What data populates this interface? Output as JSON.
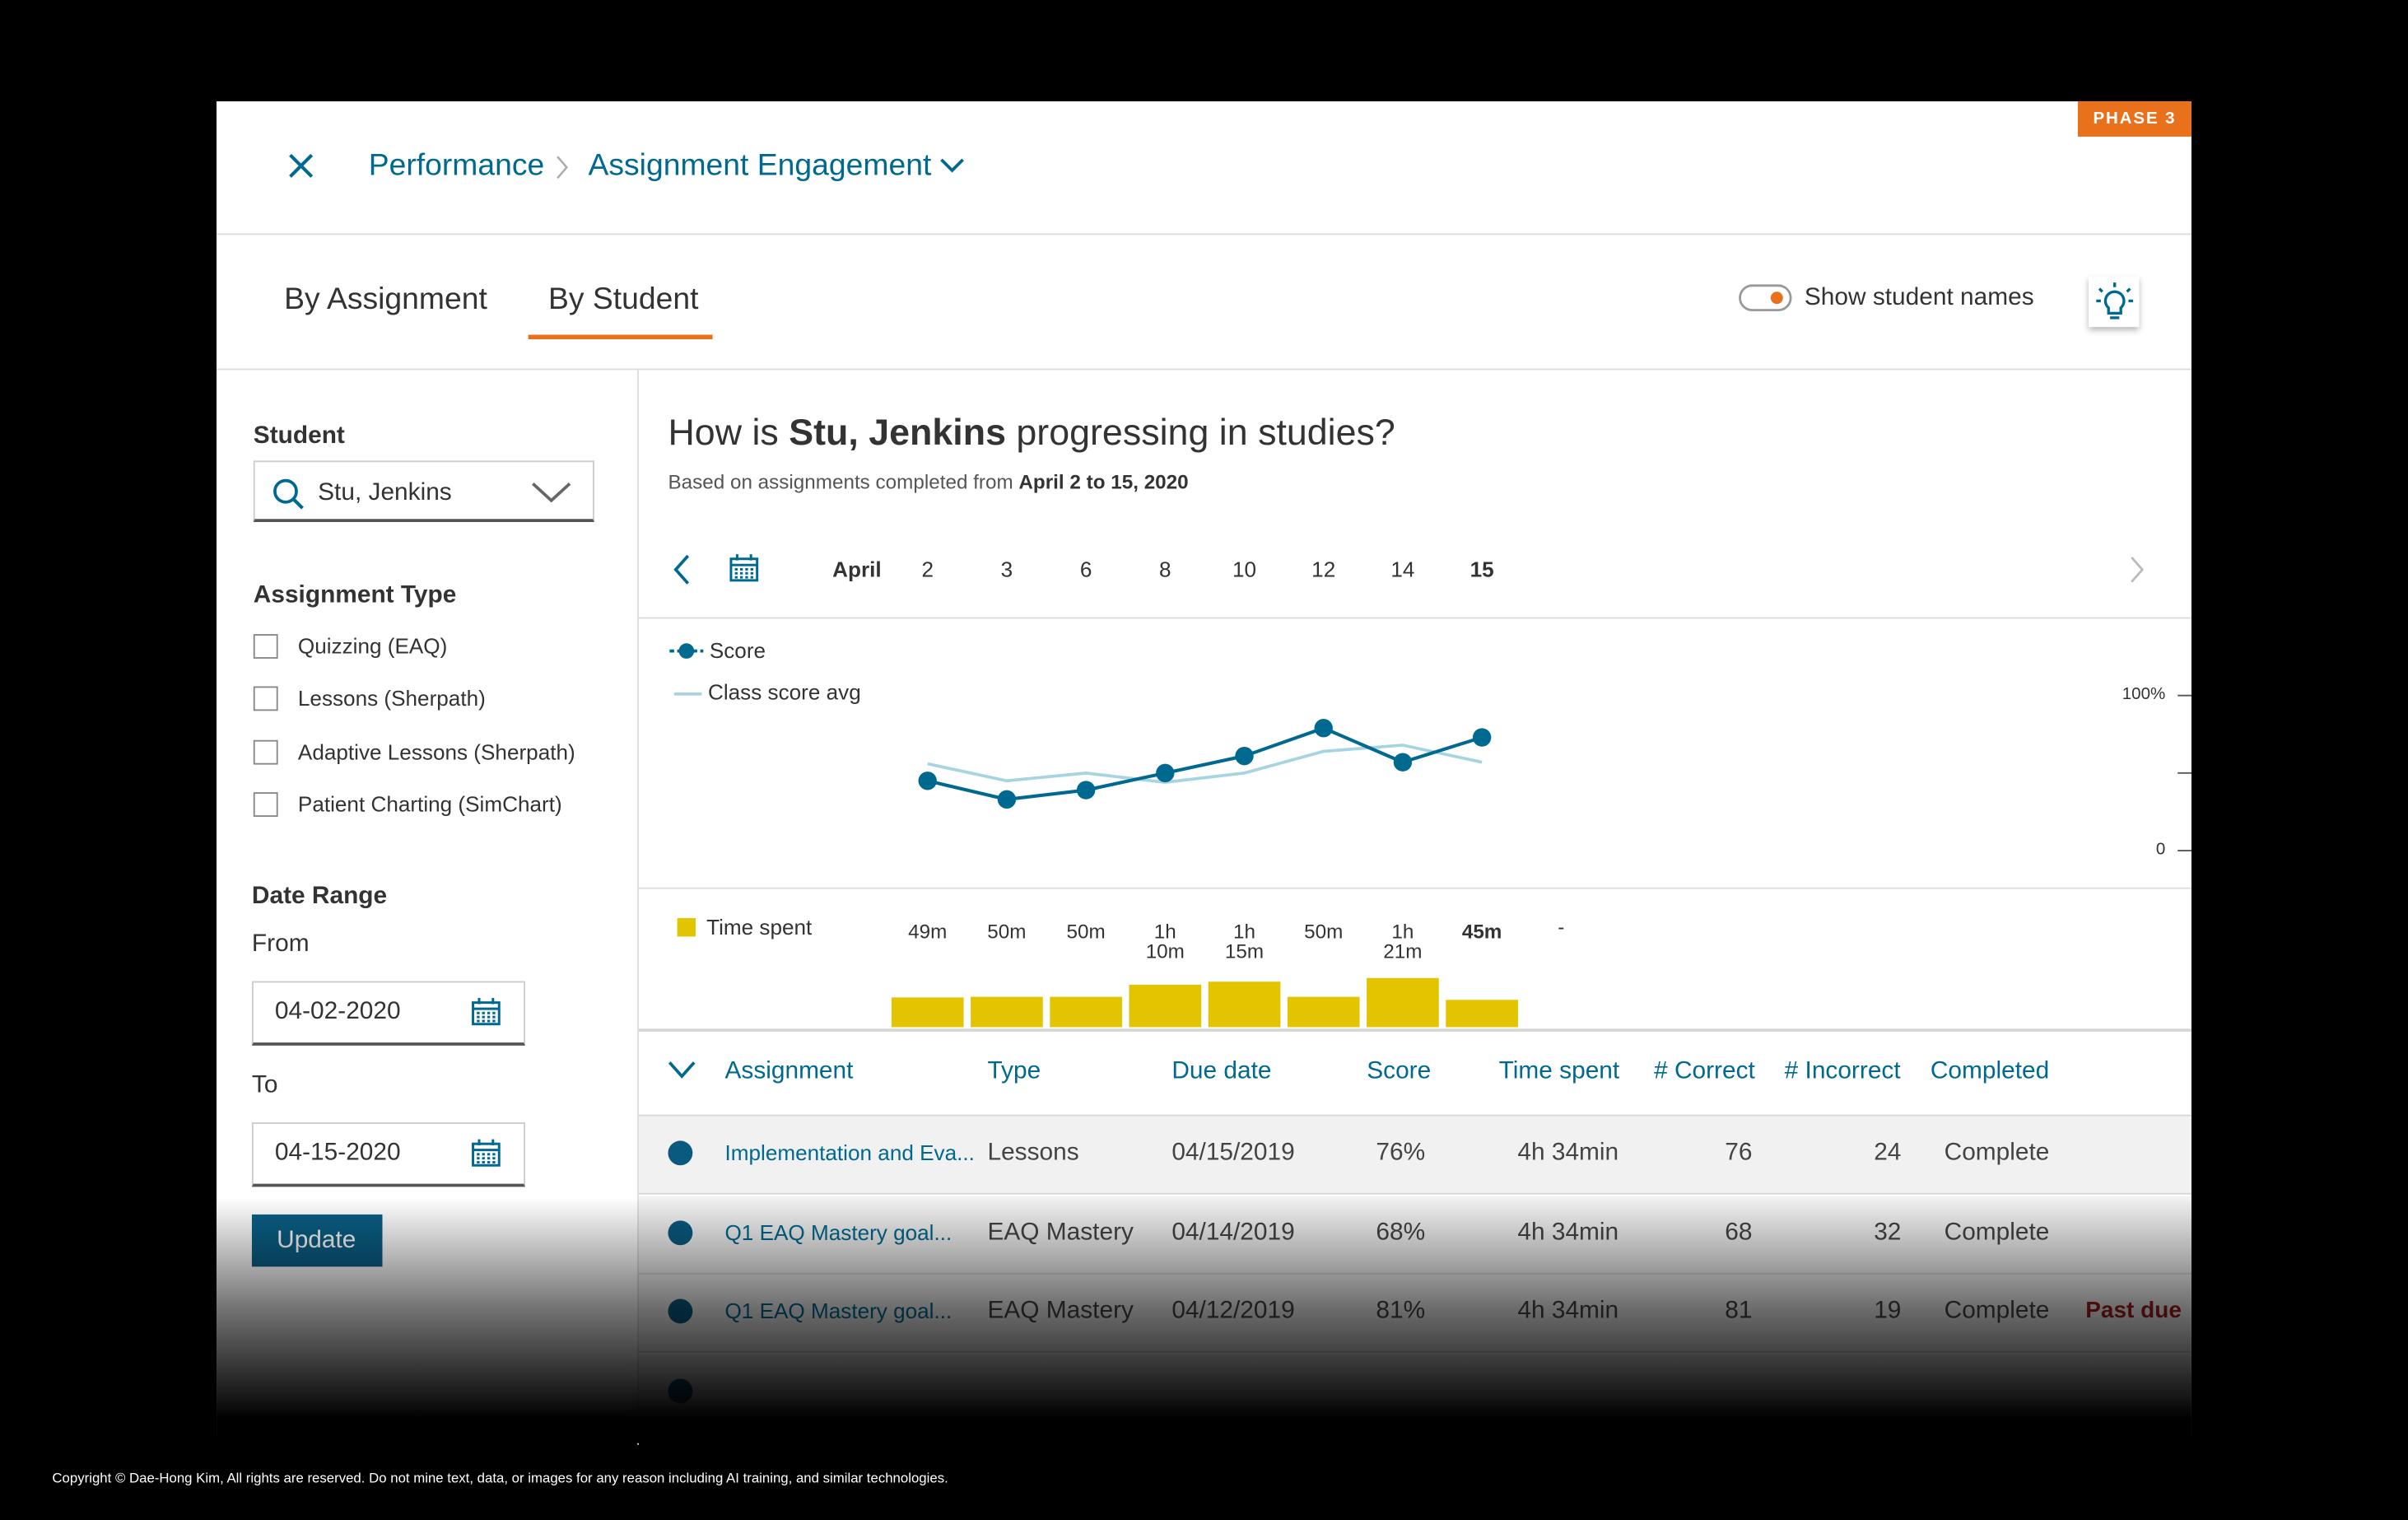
{
  "header": {
    "breadcrumb": [
      "Performance",
      "Assignment Engagement"
    ],
    "badge": "PHASE 3"
  },
  "tabs": [
    "By Assignment",
    "By Student"
  ],
  "toggle_label": "Show student names",
  "sidebar": {
    "student_label": "Student",
    "student_value": "Stu, Jenkins",
    "assignment_type_label": "Assignment Type",
    "assignment_types": [
      "Quizzing (EAQ)",
      "Lessons (Sherpath)",
      "Adaptive Lessons (Sherpath)",
      "Patient Charting (SimChart)"
    ],
    "date_range_label": "Date Range",
    "from_label": "From",
    "from_value": "04-02-2020",
    "to_label": "To",
    "to_value": "04-15-2020",
    "update_button": "Update"
  },
  "main": {
    "title_prefix": "How is ",
    "title_student": "Stu, Jenkins",
    "title_suffix": " progressing in studies?",
    "subtitle_prefix": "Based on assignments completed from ",
    "subtitle_range": "April 2 to 15, 2020",
    "month": "April"
  },
  "chart_data": [
    {
      "type": "line",
      "categories": [
        "2",
        "3",
        "6",
        "8",
        "10",
        "12",
        "14",
        "15"
      ],
      "series": [
        {
          "name": "Score",
          "color": "#00698f",
          "markers": true,
          "values": [
            45,
            33,
            39,
            50,
            61,
            79,
            57,
            73
          ]
        },
        {
          "name": "Class score avg",
          "color": "#a6d4e0",
          "markers": false,
          "values": [
            56,
            45,
            50,
            44,
            50,
            64,
            68,
            57
          ]
        }
      ],
      "ylim": [
        0,
        100
      ],
      "yticks": [
        0,
        {
          "value": 50,
          "label": null
        },
        {
          "value": 100,
          "label": "100%"
        }
      ]
    },
    {
      "type": "bar",
      "name": "Time spent",
      "color": "#e2c500",
      "values": [
        49,
        50,
        50,
        70,
        75,
        50,
        81,
        45
      ],
      "value_labels": [
        "49m",
        "50m",
        "50m",
        "1h 10m",
        "1h 15m",
        "50m",
        "1h 21m",
        "45m"
      ],
      "placeholder": "-"
    }
  ],
  "table": {
    "columns": [
      "Assignment",
      "Type",
      "Due date",
      "Score",
      "Time spent",
      "# Correct",
      "# Incorrect",
      "Completed"
    ],
    "rows": [
      [
        "Implementation and Eva...",
        "Lessons",
        "04/15/2019",
        "76%",
        "4h 34min",
        "76",
        "24",
        "Complete",
        null
      ],
      [
        "Q1 EAQ Mastery goal...",
        "EAQ Mastery",
        "04/14/2019",
        "68%",
        "4h 34min",
        "68",
        "32",
        "Complete",
        null
      ],
      [
        "Q1 EAQ Mastery goal...",
        "EAQ Mastery",
        "04/12/2019",
        "81%",
        "4h 34min",
        "81",
        "19",
        "Complete",
        "Past due"
      ]
    ]
  },
  "footer": "Copyright © Dae-Hong Kim, All rights are reserved. Do not mine text, data, or images for any reason including AI training, and similar technologies."
}
